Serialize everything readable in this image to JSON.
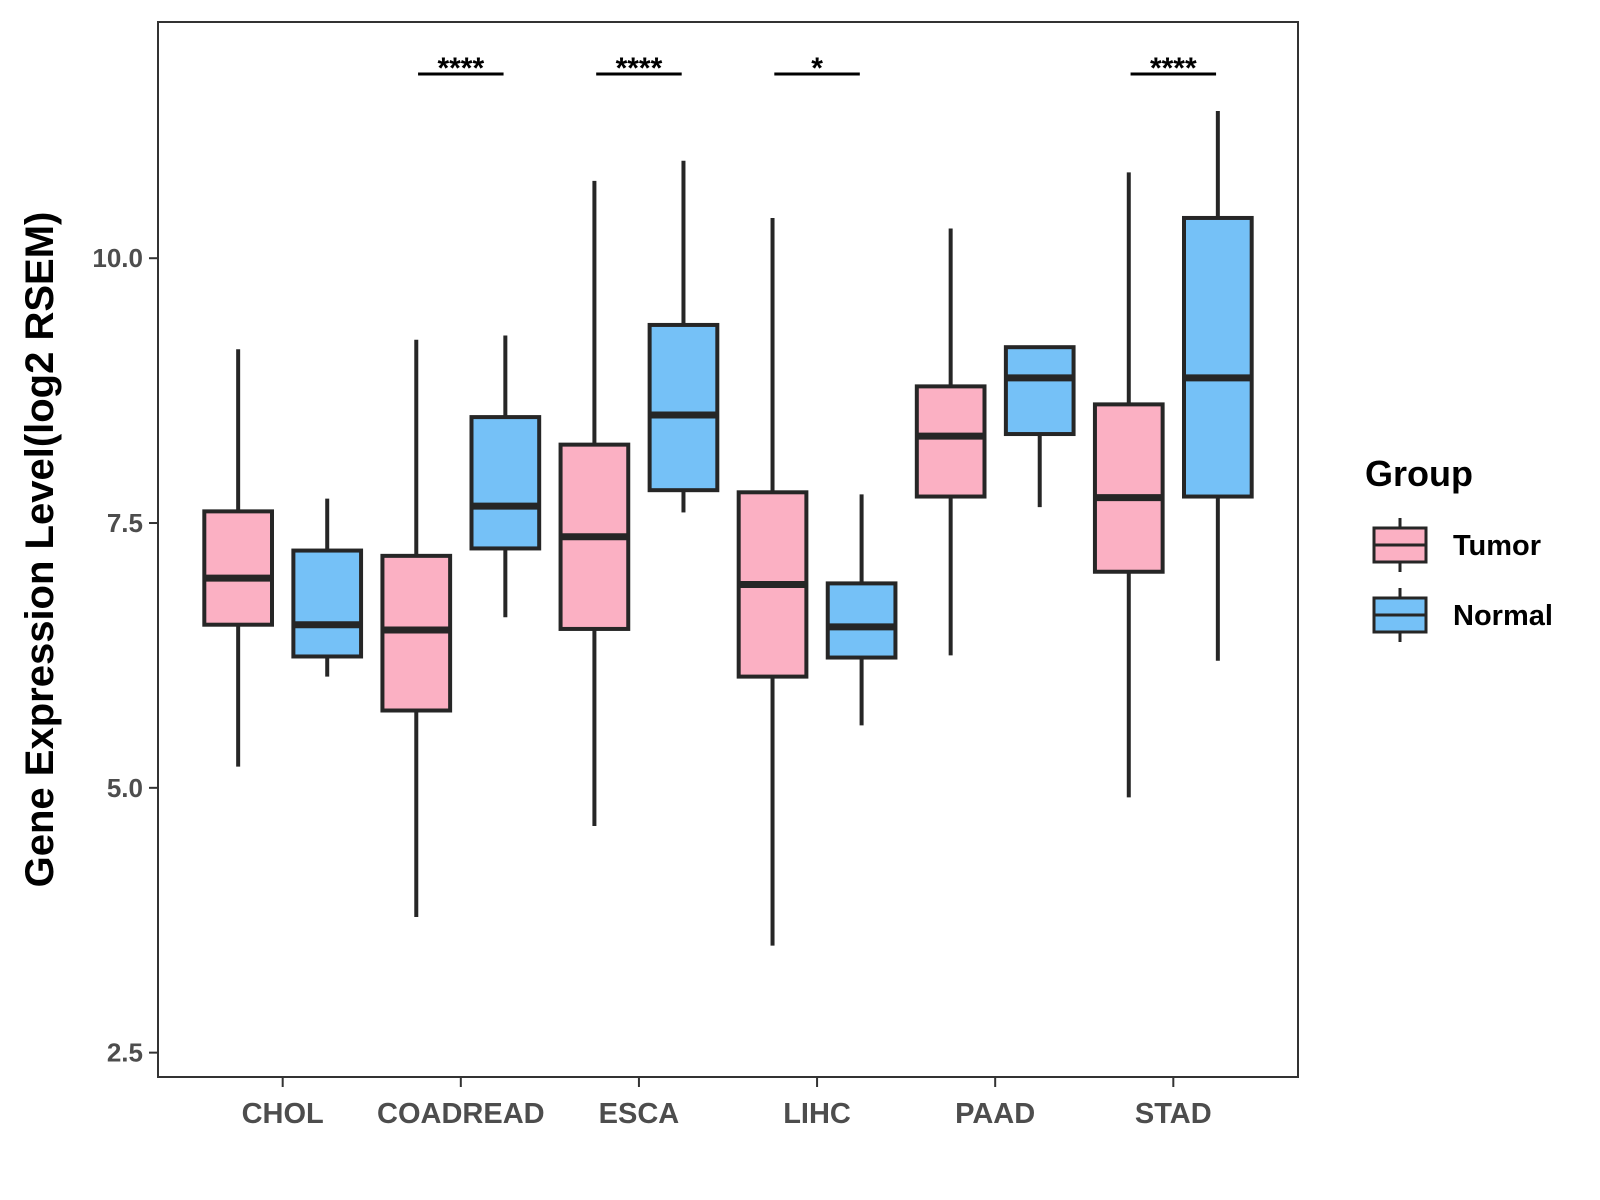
{
  "chart_data": {
    "type": "boxplot",
    "title": "",
    "xlabel": "",
    "ylabel": "Gene Expression Level(log2 RSEM)",
    "ylim": [
      2.27,
      12.23
    ],
    "y_ticks": [
      2.5,
      5.0,
      7.5,
      10.0
    ],
    "y_tick_labels": [
      "2.5",
      "5.0",
      "7.5",
      "10.0"
    ],
    "categories": [
      "CHOL",
      "COADREAD",
      "ESCA",
      "LIHC",
      "PAAD",
      "STAD"
    ],
    "legend": {
      "title": "Group",
      "position": "right",
      "entries": [
        {
          "name": "Tumor",
          "color": "#FBB0C3"
        },
        {
          "name": "Normal",
          "color": "#75C1F7"
        }
      ]
    },
    "series": [
      {
        "name": "Tumor",
        "color": "#FBB0C3",
        "boxes": [
          {
            "whisker_low": 5.2,
            "q1": 6.54,
            "median": 6.98,
            "q3": 7.61,
            "whisker_high": 9.14
          },
          {
            "whisker_low": 3.78,
            "q1": 5.73,
            "median": 6.49,
            "q3": 7.19,
            "whisker_high": 9.23
          },
          {
            "whisker_low": 4.64,
            "q1": 6.5,
            "median": 7.37,
            "q3": 8.24,
            "whisker_high": 10.73
          },
          {
            "whisker_low": 3.51,
            "q1": 6.05,
            "median": 6.92,
            "q3": 7.79,
            "whisker_high": 10.38
          },
          {
            "whisker_low": 6.25,
            "q1": 7.75,
            "median": 8.32,
            "q3": 8.79,
            "whisker_high": 10.28
          },
          {
            "whisker_low": 4.91,
            "q1": 7.04,
            "median": 7.74,
            "q3": 8.62,
            "whisker_high": 10.81
          }
        ]
      },
      {
        "name": "Normal",
        "color": "#75C1F7",
        "boxes": [
          {
            "whisker_low": 6.05,
            "q1": 6.24,
            "median": 6.54,
            "q3": 7.24,
            "whisker_high": 7.73
          },
          {
            "whisker_low": 6.61,
            "q1": 7.26,
            "median": 7.66,
            "q3": 8.5,
            "whisker_high": 9.27
          },
          {
            "whisker_low": 7.6,
            "q1": 7.81,
            "median": 8.52,
            "q3": 9.37,
            "whisker_high": 10.92
          },
          {
            "whisker_low": 5.59,
            "q1": 6.23,
            "median": 6.52,
            "q3": 6.93,
            "whisker_high": 7.77
          },
          {
            "whisker_low": 7.65,
            "q1": 8.34,
            "median": 8.87,
            "q3": 9.16,
            "whisker_high": 9.16
          },
          {
            "whisker_low": 6.2,
            "q1": 7.75,
            "median": 8.87,
            "q3": 10.38,
            "whisker_high": 11.39
          }
        ]
      }
    ],
    "annotations": [
      {
        "category": "COADREAD",
        "label": "****"
      },
      {
        "category": "ESCA",
        "label": "****"
      },
      {
        "category": "LIHC",
        "label": "*"
      },
      {
        "category": "STAD",
        "label": "****"
      }
    ]
  }
}
